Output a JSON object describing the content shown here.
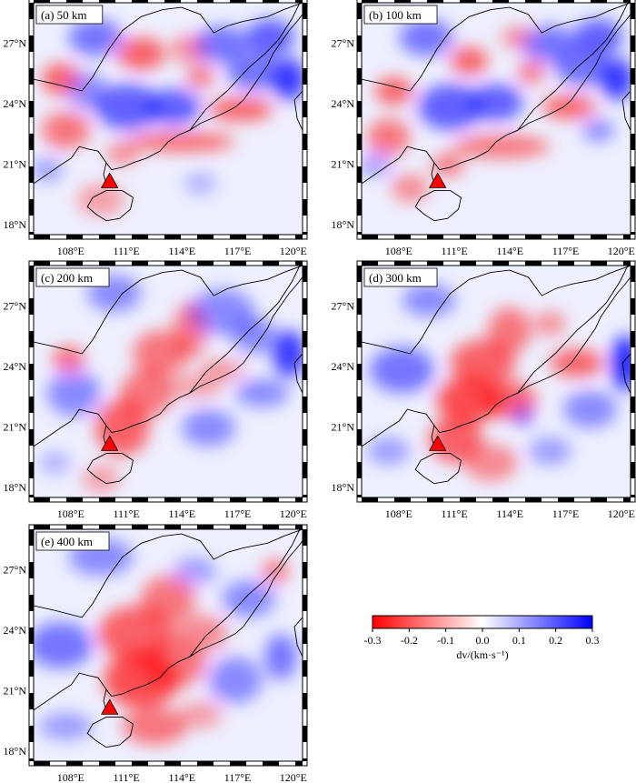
{
  "figure": {
    "panels": [
      {
        "id": "a",
        "label": "(a) 50 km"
      },
      {
        "id": "b",
        "label": "(b) 100 km"
      },
      {
        "id": "c",
        "label": "(c) 200 km"
      },
      {
        "id": "d",
        "label": "(d) 300 km"
      },
      {
        "id": "e",
        "label": "(e) 400 km"
      }
    ],
    "colorbar": {
      "title": "dv/(km·s⁻¹)",
      "ticks": [
        "-0.3",
        "-0.2",
        "-0.1",
        "0.0",
        "0.1",
        "0.2",
        "0.3"
      ],
      "min": -0.3,
      "max": 0.3,
      "colors": {
        "low": "#ff0000",
        "mid": "#ffffff",
        "high": "#0000ff"
      }
    },
    "axes": {
      "lon_ticks": [
        "108°E",
        "111°E",
        "114°E",
        "117°E",
        "120°E"
      ],
      "lat_ticks": [
        "27°N",
        "24°N",
        "21°N",
        "18°N"
      ]
    },
    "marker_color": "#ff0000"
  },
  "chart_data": [
    {
      "type": "heatmap",
      "title": "(a) 50 km",
      "xlabel": "",
      "ylabel": "",
      "xlim": [
        106,
        120.5
      ],
      "ylim": [
        17.5,
        29
      ],
      "x_ticks": [
        108,
        111,
        114,
        117,
        120
      ],
      "y_ticks": [
        18,
        21,
        24,
        27
      ],
      "value_range": [
        -0.3,
        0.3
      ],
      "volcano": [
        110.1,
        20.1
      ]
    },
    {
      "type": "heatmap",
      "title": "(b) 100 km",
      "xlabel": "",
      "ylabel": "",
      "xlim": [
        106,
        120.5
      ],
      "ylim": [
        17.5,
        29
      ],
      "x_ticks": [
        108,
        111,
        114,
        117,
        120
      ],
      "y_ticks": [
        18,
        21,
        24,
        27
      ],
      "value_range": [
        -0.3,
        0.3
      ],
      "volcano": [
        110.1,
        20.1
      ]
    },
    {
      "type": "heatmap",
      "title": "(c) 200 km",
      "xlabel": "",
      "ylabel": "",
      "xlim": [
        106,
        120.5
      ],
      "ylim": [
        17.5,
        29
      ],
      "x_ticks": [
        108,
        111,
        114,
        117,
        120
      ],
      "y_ticks": [
        18,
        21,
        24,
        27
      ],
      "value_range": [
        -0.3,
        0.3
      ],
      "volcano": [
        110.1,
        20.1
      ]
    },
    {
      "type": "heatmap",
      "title": "(d) 300 km",
      "xlabel": "",
      "ylabel": "",
      "xlim": [
        106,
        120.5
      ],
      "ylim": [
        17.5,
        29
      ],
      "x_ticks": [
        108,
        111,
        114,
        117,
        120
      ],
      "y_ticks": [
        18,
        21,
        24,
        27
      ],
      "value_range": [
        -0.3,
        0.3
      ],
      "volcano": [
        110.1,
        20.1
      ]
    },
    {
      "type": "heatmap",
      "title": "(e) 400 km",
      "xlabel": "",
      "ylabel": "",
      "xlim": [
        106,
        120.5
      ],
      "ylim": [
        17.5,
        29
      ],
      "x_ticks": [
        108,
        111,
        114,
        117,
        120
      ],
      "y_ticks": [
        18,
        21,
        24,
        27
      ],
      "value_range": [
        -0.3,
        0.3
      ],
      "volcano": [
        110.1,
        20.1
      ]
    }
  ]
}
